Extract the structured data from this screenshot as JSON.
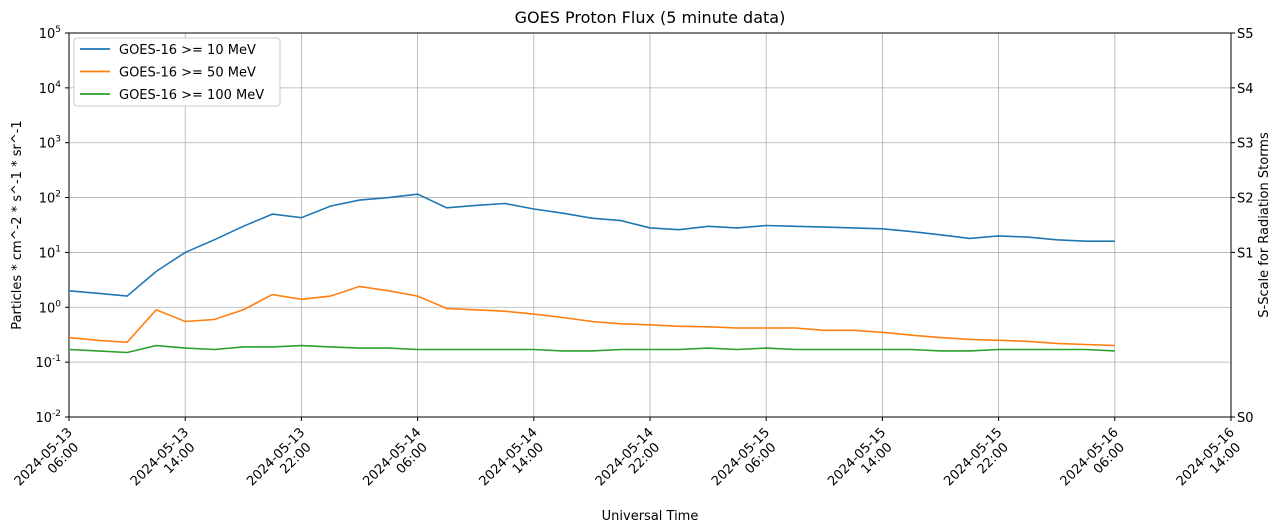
{
  "chart_data": {
    "type": "line",
    "title": "GOES Proton Flux (5 minute data)",
    "xlabel": "Universal Time",
    "ylabel": "Particles * cm^-2 * s^-1 * sr^-1",
    "y2label": "S-Scale for Radiation Storms",
    "log_y": true,
    "grid": true,
    "legend": "upper left",
    "x": [
      "2024-05-13 06:00",
      "2024-05-13 08:00",
      "2024-05-13 10:00",
      "2024-05-13 12:00",
      "2024-05-13 14:00",
      "2024-05-13 16:00",
      "2024-05-13 18:00",
      "2024-05-13 20:00",
      "2024-05-13 22:00",
      "2024-05-14 00:00",
      "2024-05-14 02:00",
      "2024-05-14 04:00",
      "2024-05-14 06:00",
      "2024-05-14 08:00",
      "2024-05-14 10:00",
      "2024-05-14 12:00",
      "2024-05-14 14:00",
      "2024-05-14 16:00",
      "2024-05-14 18:00",
      "2024-05-14 20:00",
      "2024-05-14 22:00",
      "2024-05-15 00:00",
      "2024-05-15 02:00",
      "2024-05-15 04:00",
      "2024-05-15 06:00",
      "2024-05-15 08:00",
      "2024-05-15 10:00",
      "2024-05-15 12:00",
      "2024-05-15 14:00",
      "2024-05-15 16:00",
      "2024-05-15 18:00",
      "2024-05-15 20:00",
      "2024-05-15 22:00",
      "2024-05-16 00:00",
      "2024-05-16 02:00",
      "2024-05-16 04:00",
      "2024-05-16 06:00"
    ],
    "series": [
      {
        "name": "GOES-16 >= 10 MeV",
        "color": "#1f77b4",
        "values": [
          2.0,
          1.8,
          1.6,
          4.5,
          10,
          17,
          30,
          50,
          43,
          70,
          90,
          100,
          115,
          65,
          72,
          78,
          62,
          52,
          42,
          38,
          28,
          26,
          30,
          28,
          31,
          30,
          29,
          28,
          27,
          24,
          21,
          18,
          20,
          19,
          17,
          16,
          16
        ]
      },
      {
        "name": "GOES-16 >= 50 MeV",
        "color": "#ff7f0e",
        "values": [
          0.28,
          0.25,
          0.23,
          0.9,
          0.55,
          0.6,
          0.9,
          1.7,
          1.4,
          1.6,
          2.4,
          2.0,
          1.6,
          0.95,
          0.9,
          0.85,
          0.75,
          0.65,
          0.55,
          0.5,
          0.48,
          0.45,
          0.44,
          0.42,
          0.42,
          0.42,
          0.38,
          0.38,
          0.35,
          0.31,
          0.28,
          0.26,
          0.25,
          0.24,
          0.22,
          0.21,
          0.2
        ]
      },
      {
        "name": "GOES-16 >= 100 MeV",
        "color": "#2ca02c",
        "values": [
          0.17,
          0.16,
          0.15,
          0.2,
          0.18,
          0.17,
          0.19,
          0.19,
          0.2,
          0.19,
          0.18,
          0.18,
          0.17,
          0.17,
          0.17,
          0.17,
          0.17,
          0.16,
          0.16,
          0.17,
          0.17,
          0.17,
          0.18,
          0.17,
          0.18,
          0.17,
          0.17,
          0.17,
          0.17,
          0.17,
          0.16,
          0.16,
          0.17,
          0.17,
          0.17,
          0.17,
          0.16
        ]
      }
    ],
    "xlim": [
      "2024-05-13 06:00",
      "2024-05-16 14:00"
    ],
    "xticks": [
      "2024-05-13 06:00",
      "2024-05-13 14:00",
      "2024-05-13 22:00",
      "2024-05-14 06:00",
      "2024-05-14 14:00",
      "2024-05-14 22:00",
      "2024-05-15 06:00",
      "2024-05-15 14:00",
      "2024-05-15 22:00",
      "2024-05-16 06:00",
      "2024-05-16 14:00"
    ],
    "ylim": [
      0.01,
      100000
    ],
    "yticks": [
      {
        "value": 0.01,
        "label": "10^-2"
      },
      {
        "value": 0.1,
        "label": "10^-1"
      },
      {
        "value": 1,
        "label": "10^0"
      },
      {
        "value": 10,
        "label": "10^1"
      },
      {
        "value": 100,
        "label": "10^2"
      },
      {
        "value": 1000,
        "label": "10^3"
      },
      {
        "value": 10000,
        "label": "10^4"
      },
      {
        "value": 100000,
        "label": "10^5"
      }
    ],
    "y2lim": [
      0.01,
      100000
    ],
    "y2ticks": [
      {
        "value": 0.01,
        "label": "S0"
      },
      {
        "value": 10,
        "label": "S1"
      },
      {
        "value": 100,
        "label": "S2"
      },
      {
        "value": 1000,
        "label": "S3"
      },
      {
        "value": 10000,
        "label": "S4"
      },
      {
        "value": 100000,
        "label": "S5"
      }
    ]
  }
}
